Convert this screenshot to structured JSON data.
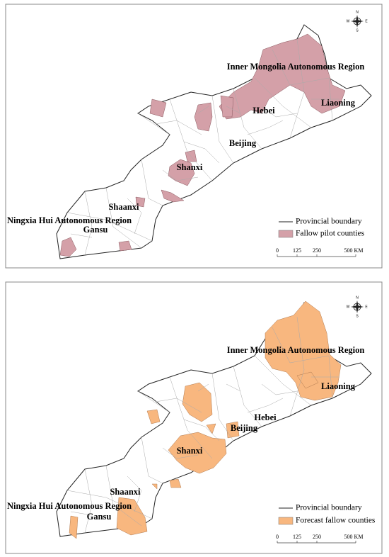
{
  "panels": [
    {
      "regions": [
        "Inner Mongolia Autonomous Region",
        "Liaoning",
        "Hebei",
        "Beijing",
        "Shanxi",
        "Shaanxi",
        "Ningxia Hui Autonomous Region",
        "Gansu"
      ],
      "legend": [
        "Provincial boundary",
        "Fallow pilot counties"
      ],
      "scale": [
        "0",
        "125",
        "250",
        "500 KM"
      ],
      "compass": [
        "N",
        "E",
        "S",
        "W"
      ]
    },
    {
      "regions": [
        "Inner Mongolia Autonomous Region",
        "Liaoning",
        "Hebei",
        "Beijing",
        "Shanxi",
        "Shaanxi",
        "Ningxia Hui Autonomous Region",
        "Gansu"
      ],
      "legend": [
        "Provincial boundary",
        "Forecast fallow counties"
      ],
      "scale": [
        "0",
        "125",
        "250",
        "500 KM"
      ],
      "compass": [
        "N",
        "E",
        "S",
        "W"
      ]
    }
  ]
}
